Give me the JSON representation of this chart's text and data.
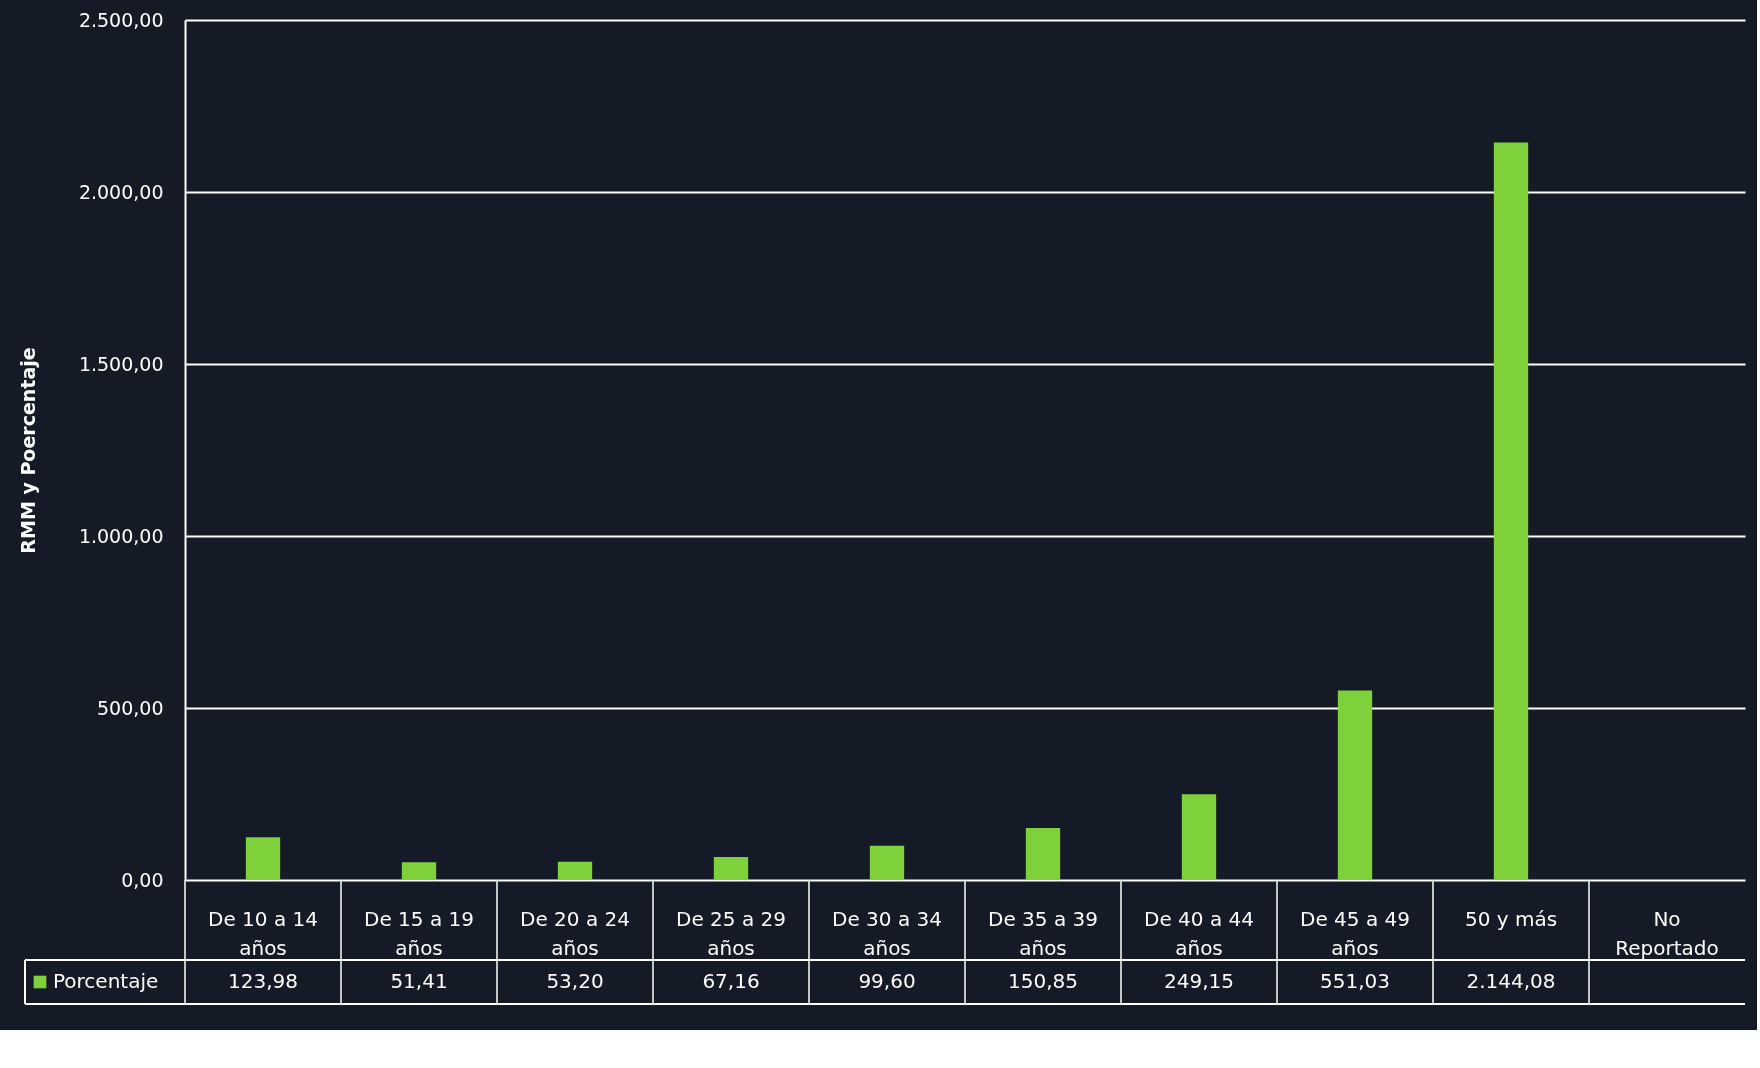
{
  "chart_data": {
    "type": "bar",
    "ylabel": "RMM y Poercentaje",
    "categories": [
      "De 10 a 14 años",
      "De 15 a 19 años",
      "De 20 a 24 años",
      "De 25 a 29 años",
      "De 30 a 34 años",
      "De 35 a 39 años",
      "De 40 a 44 años",
      "De 45 a 49 años",
      "50 y más",
      "No Reportado"
    ],
    "series": [
      {
        "name": "Porcentaje",
        "color": "#7fd13b",
        "values": [
          123.98,
          51.41,
          53.2,
          67.16,
          99.6,
          150.85,
          249.15,
          551.03,
          2144.08,
          null
        ],
        "value_labels": [
          "123,98",
          "51,41",
          "53,20",
          "67,16",
          "99,60",
          "150,85",
          "249,15",
          "551,03",
          "2.144,08",
          null
        ]
      }
    ],
    "ylim": [
      0,
      2500
    ],
    "yticks": [
      {
        "value": 0,
        "label": "0,00"
      },
      {
        "value": 500,
        "label": "500,00"
      },
      {
        "value": 1000,
        "label": "1.000,00"
      },
      {
        "value": 1500,
        "label": "1.500,00"
      },
      {
        "value": 2000,
        "label": "2.000,00"
      },
      {
        "value": 2500,
        "label": "2.500,00"
      }
    ],
    "grid": "y",
    "legend": "bottom left"
  }
}
